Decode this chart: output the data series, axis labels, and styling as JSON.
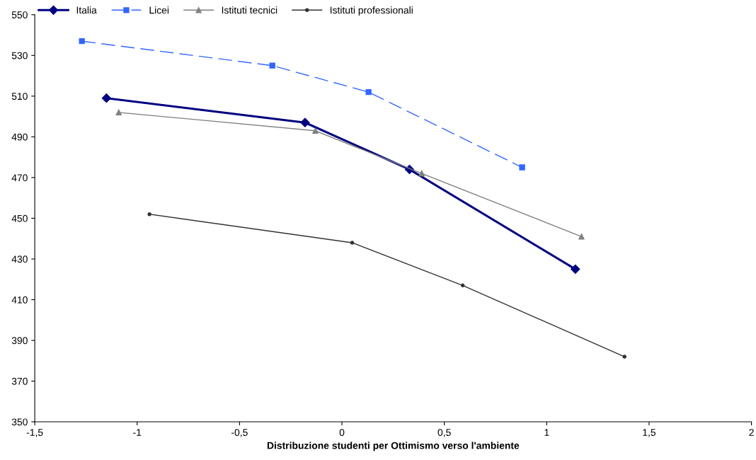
{
  "chart_data": {
    "type": "line",
    "xlabel": "Distribuzione studenti per Ottimismo verso l'ambiente",
    "xlim": [
      -1.5,
      2
    ],
    "xticks": [
      {
        "value": -1.5,
        "label": "-1,5"
      },
      {
        "value": -1,
        "label": "-1"
      },
      {
        "value": -0.5,
        "label": "-0,5"
      },
      {
        "value": 0,
        "label": "0"
      },
      {
        "value": 0.5,
        "label": "0,5"
      },
      {
        "value": 1,
        "label": "1"
      },
      {
        "value": 1.5,
        "label": "1,5"
      },
      {
        "value": 2,
        "label": "2"
      }
    ],
    "ylim": [
      350,
      550
    ],
    "yticks": [
      350,
      370,
      390,
      410,
      430,
      450,
      470,
      490,
      510,
      530,
      550
    ],
    "grid": false,
    "legend": "top left",
    "series": [
      {
        "name": "Italia",
        "color": "#000080",
        "marker": "diamond",
        "line_style": "solid",
        "x": [
          -1.15,
          -0.18,
          0.33,
          1.14
        ],
        "values": [
          509,
          497,
          474,
          425
        ]
      },
      {
        "name": "Licei",
        "color": "#3366ff",
        "marker": "square",
        "line_style": "dashed",
        "x": [
          -1.27,
          -0.34,
          0.13,
          0.88
        ],
        "values": [
          537,
          525,
          512,
          475
        ]
      },
      {
        "name": "Istituti tecnici",
        "color": "#808080",
        "marker": "triangle",
        "line_style": "solid",
        "x": [
          -1.09,
          -0.13,
          0.39,
          1.17
        ],
        "values": [
          502,
          493,
          472,
          441
        ]
      },
      {
        "name": "Istituti professionali",
        "color": "#333333",
        "marker": "circle",
        "line_style": "solid",
        "x": [
          -0.94,
          0.05,
          0.59,
          1.38
        ],
        "values": [
          452,
          438,
          417,
          382
        ]
      }
    ]
  }
}
